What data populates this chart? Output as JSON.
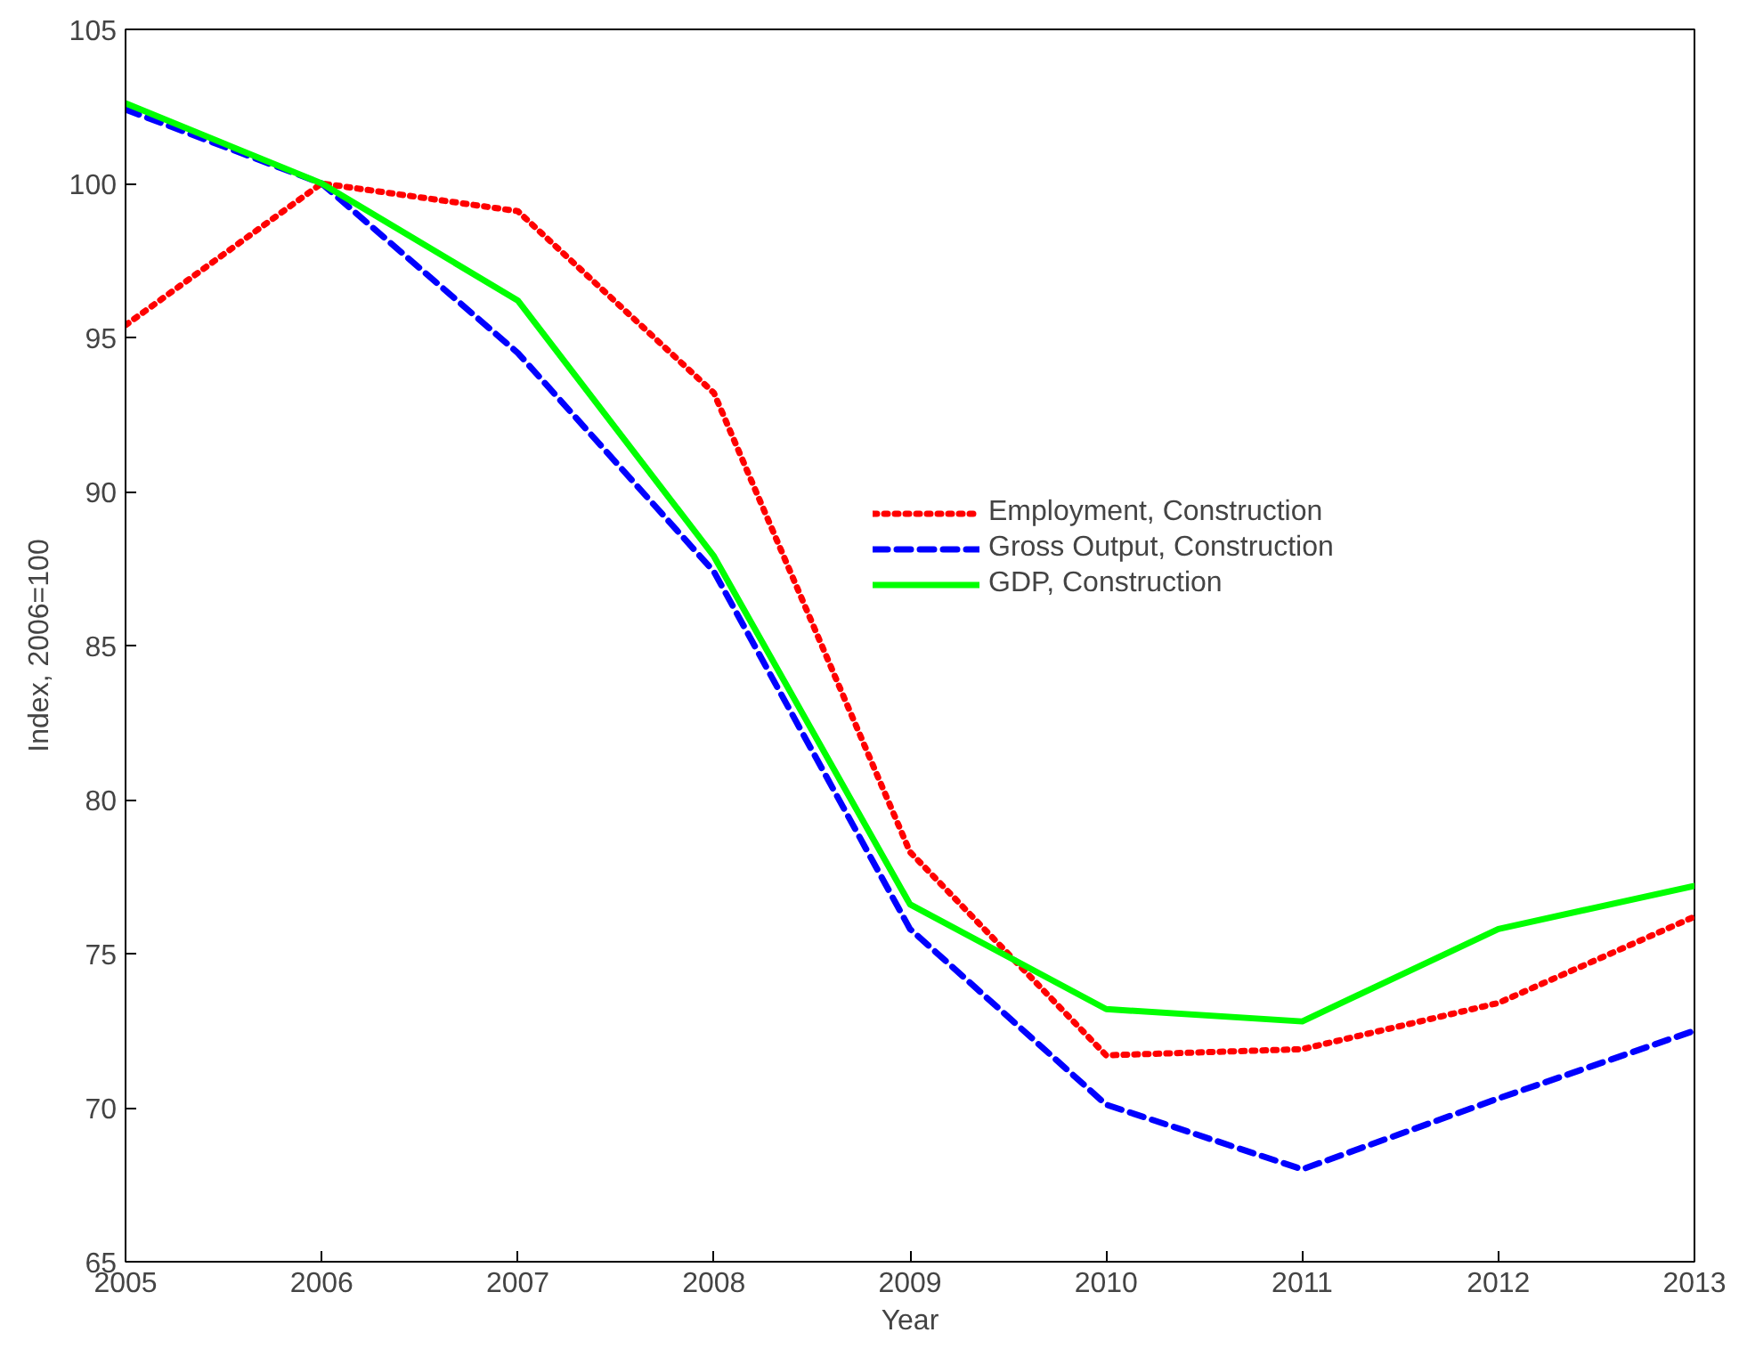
{
  "chart_data": {
    "type": "line",
    "xlabel": "Year",
    "ylabel": "Index, 2006=100",
    "x": [
      2005,
      2006,
      2007,
      2008,
      2009,
      2010,
      2011,
      2012,
      2013
    ],
    "series": [
      {
        "name": "Employment, Construction",
        "color": "#ff0000",
        "line_style": "dotted",
        "values": [
          95.4,
          100,
          99.1,
          93.2,
          78.3,
          71.7,
          71.9,
          73.4,
          76.2
        ]
      },
      {
        "name": "Gross Output, Construction",
        "color": "#0000ff",
        "line_style": "dashed",
        "values": [
          102.4,
          100,
          94.5,
          87.4,
          75.8,
          70.1,
          68.0,
          70.3,
          72.5
        ]
      },
      {
        "name": "GDP, Construction",
        "color": "#00ff00",
        "line_style": "solid",
        "values": [
          102.6,
          100,
          96.2,
          87.9,
          76.6,
          73.2,
          72.8,
          75.8,
          77.2
        ]
      }
    ],
    "xlim": [
      2005,
      2013
    ],
    "xticks": [
      2005,
      2006,
      2007,
      2008,
      2009,
      2010,
      2011,
      2012,
      2013
    ],
    "ylim": [
      65,
      105
    ],
    "yticks": [
      65,
      70,
      75,
      80,
      85,
      90,
      95,
      100,
      105
    ],
    "legend": "right",
    "grid": false
  }
}
